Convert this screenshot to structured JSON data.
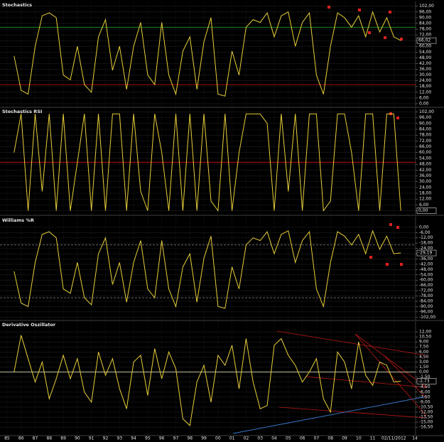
{
  "chart_data": [
    {
      "type": "line",
      "title": "Stochastics",
      "color": "#e8cf3a",
      "ylim": [
        -3,
        107
      ],
      "last_label": "66,02",
      "grid": true,
      "levels": [
        {
          "value": 80,
          "color": "#1f9b1f"
        },
        {
          "value": 20,
          "color": "#c01010"
        }
      ],
      "yticks": [
        {
          "value": 102,
          "label": "102,00"
        },
        {
          "value": 96,
          "label": "96,00"
        },
        {
          "value": 90,
          "label": "90,00"
        },
        {
          "value": 84,
          "label": "84,00"
        },
        {
          "value": 78,
          "label": "78,00"
        },
        {
          "value": 72,
          "label": "72,00"
        },
        {
          "value": 66,
          "label": "66,00"
        },
        {
          "value": 60,
          "label": "60,00"
        },
        {
          "value": 54,
          "label": "54,00"
        },
        {
          "value": 48,
          "label": "48,00"
        },
        {
          "value": 42,
          "label": "42,00"
        },
        {
          "value": 36,
          "label": "36,00"
        },
        {
          "value": 30,
          "label": "30,00"
        },
        {
          "value": 24,
          "label": "24,00"
        },
        {
          "value": 18,
          "label": "18,00"
        },
        {
          "value": 12,
          "label": "12,00"
        },
        {
          "value": 6,
          "label": "6,00"
        },
        {
          "value": 0,
          "label": "0,00"
        }
      ],
      "x": [
        1985.5,
        1986,
        1986.5,
        1987,
        1987.5,
        1988,
        1988.5,
        1989,
        1989.5,
        1990,
        1990.5,
        1991,
        1991.5,
        1992,
        1992.5,
        1993,
        1993.5,
        1994,
        1994.5,
        1995,
        1995.5,
        1996,
        1996.5,
        1997,
        1997.5,
        1998,
        1998.5,
        1999,
        1999.5,
        2000,
        2000.5,
        2001,
        2001.5,
        2002,
        2002.5,
        2003,
        2003.5,
        2004,
        2004.5,
        2005,
        2005.5,
        2006,
        2006.5,
        2007,
        2007.5,
        2008,
        2008.5,
        2009,
        2009.5,
        2010,
        2010.5,
        2011,
        2011.5,
        2012,
        2012.5,
        2013
      ],
      "values": [
        50,
        14,
        10,
        60,
        92,
        95,
        90,
        30,
        25,
        60,
        20,
        12,
        70,
        88,
        35,
        60,
        15,
        60,
        85,
        30,
        20,
        85,
        30,
        10,
        55,
        70,
        15,
        65,
        90,
        10,
        8,
        55,
        30,
        80,
        88,
        85,
        95,
        70,
        92,
        96,
        60,
        85,
        95,
        30,
        10,
        60,
        95,
        90,
        80,
        92,
        70,
        96,
        75,
        90,
        70,
        66.02
      ]
    },
    {
      "type": "line",
      "title": "Stochastics RSI",
      "color": "#e8cf3a",
      "ylim": [
        -4,
        106
      ],
      "last_label": "0,00",
      "grid": true,
      "levels": [
        {
          "value": 50,
          "color": "#c01010"
        }
      ],
      "yticks": [
        {
          "value": 102,
          "label": "102,00"
        },
        {
          "value": 96,
          "label": "96,00"
        },
        {
          "value": 90,
          "label": "90,00"
        },
        {
          "value": 84,
          "label": "84,00"
        },
        {
          "value": 78,
          "label": "78,00"
        },
        {
          "value": 72,
          "label": "72,00"
        },
        {
          "value": 66,
          "label": "66,00"
        },
        {
          "value": 60,
          "label": "60,00"
        },
        {
          "value": 54,
          "label": "54,00"
        },
        {
          "value": 48,
          "label": "48,00"
        },
        {
          "value": 42,
          "label": "42,00"
        },
        {
          "value": 36,
          "label": "36,00"
        },
        {
          "value": 30,
          "label": "30,00"
        },
        {
          "value": 24,
          "label": "24,00"
        },
        {
          "value": 18,
          "label": "18,00"
        },
        {
          "value": 12,
          "label": "12,00"
        },
        {
          "value": 6,
          "label": "6,00"
        },
        {
          "value": 0,
          "label": "0,00"
        }
      ],
      "x": [
        1985.5,
        1986,
        1986.5,
        1987,
        1987.5,
        1988,
        1988.5,
        1989,
        1989.5,
        1990,
        1990.5,
        1991,
        1991.5,
        1992,
        1992.5,
        1993,
        1993.5,
        1994,
        1994.5,
        1995,
        1995.5,
        1996,
        1996.5,
        1997,
        1997.5,
        1998,
        1998.5,
        1999,
        1999.5,
        2000,
        2000.5,
        2001,
        2001.5,
        2002,
        2002.5,
        2003,
        2003.5,
        2004,
        2004.5,
        2005,
        2005.5,
        2006,
        2006.5,
        2007,
        2007.5,
        2008,
        2008.5,
        2009,
        2009.5,
        2010,
        2010.5,
        2011,
        2011.5,
        2012,
        2012.5,
        2013
      ],
      "values": [
        60,
        100,
        0,
        100,
        20,
        100,
        0,
        100,
        0,
        50,
        100,
        0,
        100,
        0,
        100,
        100,
        0,
        100,
        20,
        0,
        100,
        60,
        0,
        100,
        0,
        100,
        0,
        100,
        10,
        0,
        100,
        0,
        60,
        100,
        100,
        100,
        90,
        0,
        100,
        20,
        100,
        0,
        100,
        100,
        0,
        10,
        100,
        100,
        60,
        0,
        100,
        100,
        0,
        100,
        100,
        0
      ]
    },
    {
      "type": "line",
      "title": "Williams %R",
      "color": "#e8cf3a",
      "ylim": [
        -105,
        12
      ],
      "last_label": "-29,19",
      "grid": true,
      "levels": [
        {
          "value": -20,
          "color": "#777777",
          "dash": true
        },
        {
          "value": -80,
          "color": "#777777",
          "dash": true
        }
      ],
      "yticks": [
        {
          "value": 0,
          "label": "0,00"
        },
        {
          "value": -6,
          "label": "-6,00"
        },
        {
          "value": -12,
          "label": "-12,00"
        },
        {
          "value": -18,
          "label": "-18,00"
        },
        {
          "value": -24,
          "label": "-24,00"
        },
        {
          "value": -30,
          "label": "-30,00"
        },
        {
          "value": -36,
          "label": "-36,00"
        },
        {
          "value": -42,
          "label": "-42,00"
        },
        {
          "value": -48,
          "label": "-48,00"
        },
        {
          "value": -54,
          "label": "-54,00"
        },
        {
          "value": -60,
          "label": "-60,00"
        },
        {
          "value": -66,
          "label": "-66,00"
        },
        {
          "value": -72,
          "label": "-72,00"
        },
        {
          "value": -78,
          "label": "-78,00"
        },
        {
          "value": -84,
          "label": "-84,00"
        },
        {
          "value": -90,
          "label": "-90,00"
        },
        {
          "value": -96,
          "label": "-96,00"
        },
        {
          "value": -102,
          "label": "-102,00"
        }
      ],
      "x": [
        1985.5,
        1986,
        1986.5,
        1987,
        1987.5,
        1988,
        1988.5,
        1989,
        1989.5,
        1990,
        1990.5,
        1991,
        1991.5,
        1992,
        1992.5,
        1993,
        1993.5,
        1994,
        1994.5,
        1995,
        1995.5,
        1996,
        1996.5,
        1997,
        1997.5,
        1998,
        1998.5,
        1999,
        1999.5,
        2000,
        2000.5,
        2001,
        2001.5,
        2002,
        2002.5,
        2003,
        2003.5,
        2004,
        2004.5,
        2005,
        2005.5,
        2006,
        2006.5,
        2007,
        2007.5,
        2008,
        2008.5,
        2009,
        2009.5,
        2010,
        2010.5,
        2011,
        2011.5,
        2012,
        2012.5,
        2013
      ],
      "values": [
        -50,
        -86,
        -90,
        -40,
        -8,
        -5,
        -12,
        -70,
        -75,
        -40,
        -80,
        -88,
        -30,
        -12,
        -65,
        -40,
        -85,
        -40,
        -15,
        -70,
        -80,
        -15,
        -70,
        -90,
        -45,
        -30,
        -85,
        -35,
        -10,
        -90,
        -92,
        -45,
        -70,
        -20,
        -12,
        -15,
        -5,
        -30,
        -8,
        -4,
        -40,
        -15,
        -5,
        -70,
        -90,
        -40,
        -5,
        -10,
        -20,
        -8,
        -30,
        -4,
        -25,
        -10,
        -30,
        -29.19
      ]
    },
    {
      "type": "line",
      "title": "Derivative Oszillator",
      "color": "#e8cf3a",
      "ylim": [
        -18.8,
        15.2
      ],
      "last_label": "-2,73",
      "grid": true,
      "levels": [
        {
          "value": 0,
          "color": "#d8d8b0"
        }
      ],
      "yticks": [
        {
          "value": 12,
          "label": "12,00"
        },
        {
          "value": 10.5,
          "label": "10,50"
        },
        {
          "value": 9,
          "label": "9,00"
        },
        {
          "value": 7.5,
          "label": "7,50"
        },
        {
          "value": 6,
          "label": "6,00"
        },
        {
          "value": 4.5,
          "label": "4,50"
        },
        {
          "value": 3,
          "label": "3,00"
        },
        {
          "value": 1.5,
          "label": "1,50"
        },
        {
          "value": 0,
          "label": "0,00"
        },
        {
          "value": -1.5,
          "label": "-1,50"
        },
        {
          "value": -3,
          "label": "-3,00"
        },
        {
          "value": -4.5,
          "label": "-4,50"
        },
        {
          "value": -6,
          "label": "-6,00"
        },
        {
          "value": -7.5,
          "label": "-7,50"
        },
        {
          "value": -9,
          "label": "-9,00"
        },
        {
          "value": -10.5,
          "label": "-10,50"
        },
        {
          "value": -12,
          "label": "-12,00"
        },
        {
          "value": -13.5,
          "label": "-13,50"
        },
        {
          "value": -15,
          "label": "-15,00"
        },
        {
          "value": -16.5,
          "label": "-16,50"
        }
      ],
      "xlim": [
        1984.5,
        2014.05
      ],
      "xticks": [
        {
          "value": 1985,
          "label": "85"
        },
        {
          "value": 1986,
          "label": "86"
        },
        {
          "value": 1987,
          "label": "87"
        },
        {
          "value": 1988,
          "label": "88"
        },
        {
          "value": 1989,
          "label": "89"
        },
        {
          "value": 1990,
          "label": "90"
        },
        {
          "value": 1991,
          "label": "91"
        },
        {
          "value": 1992,
          "label": "92"
        },
        {
          "value": 1993,
          "label": "93"
        },
        {
          "value": 1994,
          "label": "94"
        },
        {
          "value": 1995,
          "label": "95"
        },
        {
          "value": 1996,
          "label": "96"
        },
        {
          "value": 1997,
          "label": "97"
        },
        {
          "value": 1998,
          "label": "98"
        },
        {
          "value": 1999,
          "label": "99"
        },
        {
          "value": 2000,
          "label": "00"
        },
        {
          "value": 2001,
          "label": "01"
        },
        {
          "value": 2002,
          "label": "02"
        },
        {
          "value": 2003,
          "label": "03"
        },
        {
          "value": 2004,
          "label": "04"
        },
        {
          "value": 2005,
          "label": "05"
        },
        {
          "value": 2006,
          "label": "06"
        },
        {
          "value": 2007,
          "label": "07"
        },
        {
          "value": 2008,
          "label": "08"
        },
        {
          "value": 2009,
          "label": "09"
        },
        {
          "value": 2010,
          "label": "10"
        },
        {
          "value": 2011,
          "label": "11"
        },
        {
          "value": 2012.5,
          "label": "02/11/2012"
        },
        {
          "value": 2014,
          "label": "14"
        }
      ],
      "x": [
        1985.5,
        1986,
        1986.5,
        1987,
        1987.5,
        1988,
        1988.5,
        1989,
        1989.5,
        1990,
        1990.5,
        1991,
        1991.5,
        1992,
        1992.5,
        1993,
        1993.5,
        1994,
        1994.5,
        1995,
        1995.5,
        1996,
        1996.5,
        1997,
        1997.5,
        1998,
        1998.5,
        1999,
        1999.5,
        2000,
        2000.5,
        2001,
        2001.5,
        2002,
        2002.5,
        2003,
        2003.5,
        2004,
        2004.5,
        2005,
        2005.5,
        2006,
        2006.5,
        2007,
        2007.5,
        2008,
        2008.5,
        2009,
        2009.5,
        2010,
        2010.5,
        2011,
        2011.5,
        2012,
        2012.5,
        2013
      ],
      "values": [
        0,
        11,
        4,
        -3,
        3,
        -8,
        -2,
        5,
        -2,
        4,
        -6,
        -9,
        6,
        -1,
        4,
        -5,
        -11,
        3,
        5,
        -7,
        7,
        -2,
        6,
        1,
        -14,
        -16,
        -3,
        2,
        -9,
        5,
        2,
        8,
        -5,
        10,
        -3,
        -11,
        -10,
        8,
        10,
        5,
        2,
        -3,
        0,
        4,
        -8,
        -12,
        6,
        3,
        -5,
        9,
        -1,
        -4,
        3,
        2,
        -3,
        -2.73
      ]
    }
  ]
}
